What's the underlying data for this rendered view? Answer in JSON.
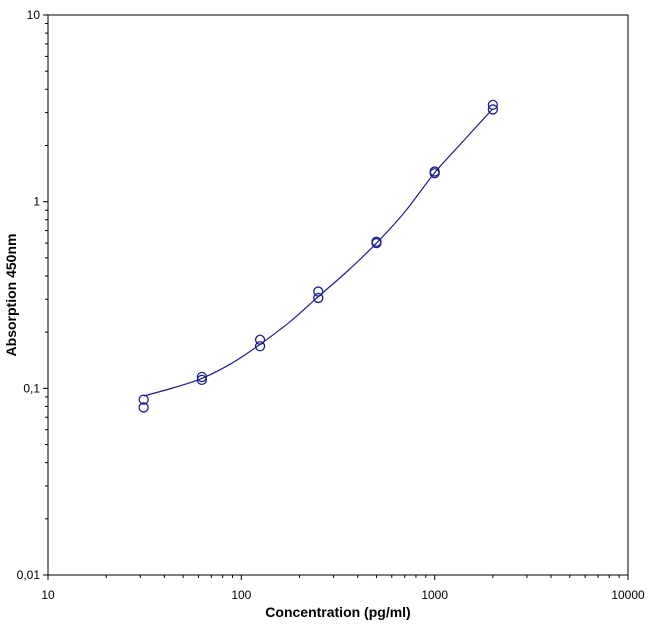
{
  "chart_data": {
    "type": "scatter",
    "xlabel": "Concentration (pg/ml)",
    "ylabel": "Absorption 450nm",
    "x_scale": "log",
    "y_scale": "log",
    "xlim": [
      10,
      10000
    ],
    "ylim": [
      0.01,
      10
    ],
    "x_ticks": [
      {
        "value": 10,
        "label": "10"
      },
      {
        "value": 100,
        "label": "100"
      },
      {
        "value": 1000,
        "label": "1000"
      },
      {
        "value": 10000,
        "label": "10000"
      }
    ],
    "y_ticks": [
      {
        "value": 0.01,
        "label": "0,01"
      },
      {
        "value": 0.1,
        "label": "0,1"
      },
      {
        "value": 1,
        "label": "1"
      },
      {
        "value": 10,
        "label": "10"
      }
    ],
    "grid": false,
    "color": "#1f1f8a",
    "points": [
      {
        "x": 31.25,
        "y": 0.087
      },
      {
        "x": 31.25,
        "y": 0.079
      },
      {
        "x": 62.5,
        "y": 0.115
      },
      {
        "x": 62.5,
        "y": 0.111
      },
      {
        "x": 125,
        "y": 0.182
      },
      {
        "x": 125,
        "y": 0.168
      },
      {
        "x": 250,
        "y": 0.33
      },
      {
        "x": 250,
        "y": 0.305
      },
      {
        "x": 500,
        "y": 0.61
      },
      {
        "x": 500,
        "y": 0.6
      },
      {
        "x": 1000,
        "y": 1.45
      },
      {
        "x": 1000,
        "y": 1.42
      },
      {
        "x": 2000,
        "y": 3.3
      },
      {
        "x": 2000,
        "y": 3.12
      }
    ],
    "fit_curve": [
      {
        "x": 31.25,
        "y": 0.091
      },
      {
        "x": 45,
        "y": 0.101
      },
      {
        "x": 62.5,
        "y": 0.113
      },
      {
        "x": 90,
        "y": 0.137
      },
      {
        "x": 125,
        "y": 0.172
      },
      {
        "x": 180,
        "y": 0.229
      },
      {
        "x": 250,
        "y": 0.31
      },
      {
        "x": 350,
        "y": 0.42
      },
      {
        "x": 500,
        "y": 0.6
      },
      {
        "x": 700,
        "y": 0.88
      },
      {
        "x": 1000,
        "y": 1.43
      },
      {
        "x": 1400,
        "y": 2.1
      },
      {
        "x": 2000,
        "y": 3.15
      }
    ]
  }
}
